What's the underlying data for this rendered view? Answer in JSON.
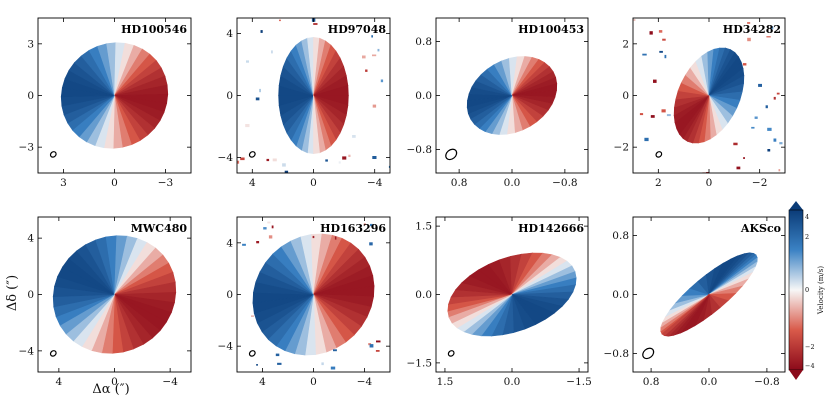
{
  "figure": {
    "xlabel": "Δα (″)",
    "ylabel": "Δδ (″)",
    "colorbar": {
      "label": "Velocity (m/s)",
      "ticks": [
        "4",
        "2",
        "0",
        "−2",
        "−4"
      ],
      "colors": {
        "red": "#8b0a1a",
        "white": "#f7f7f7",
        "blue": "#0b3c78"
      }
    }
  },
  "chart_data": [
    {
      "type": "heatmap",
      "name": "HD100546",
      "xlim": [
        4.5,
        -4.5
      ],
      "ylim": [
        -4.5,
        4.5
      ],
      "xticks": [
        3,
        0,
        -3
      ],
      "xticklabels": [
        "3",
        "0",
        "−3"
      ],
      "yticks": [
        3,
        0,
        -3
      ],
      "yticklabels": [
        "3",
        "0",
        "−3"
      ],
      "disk": {
        "radius": 3.2,
        "axis_ratio": 0.95,
        "pa_deg": 140,
        "redshift_angle_deg": 230
      },
      "beam_position": "bottom-left",
      "noise": false
    },
    {
      "type": "heatmap",
      "name": "HD97048",
      "xlim": [
        5,
        -5
      ],
      "ylim": [
        -5,
        5
      ],
      "xticks": [
        4,
        0,
        -4
      ],
      "xticklabels": [
        "4",
        "0",
        "−4"
      ],
      "yticks": [
        4,
        0,
        -4
      ],
      "yticklabels": [
        "4",
        "0",
        "−4"
      ],
      "disk": {
        "radius": 3.8,
        "axis_ratio": 0.6,
        "pa_deg": 90,
        "redshift_angle_deg": 270
      },
      "beam_position": "bottom-left",
      "noise": true
    },
    {
      "type": "heatmap",
      "name": "HD100453",
      "xlim": [
        1.15,
        -1.15
      ],
      "ylim": [
        -1.15,
        1.15
      ],
      "xticks": [
        0.8,
        0.0,
        -0.8
      ],
      "xticklabels": [
        "0.8",
        "0.0",
        "−0.8"
      ],
      "yticks": [
        0.8,
        0.0,
        -0.8
      ],
      "yticklabels": [
        "0.8",
        "0.0",
        "−0.8"
      ],
      "disk": {
        "radius": 0.72,
        "axis_ratio": 0.75,
        "pa_deg": 150,
        "redshift_angle_deg": 210
      },
      "beam_position": "bottom-left",
      "noise": false
    },
    {
      "type": "heatmap",
      "name": "HD34282",
      "xlim": [
        3,
        -3
      ],
      "ylim": [
        -3,
        3
      ],
      "xticks": [
        2,
        0,
        -2
      ],
      "xticklabels": [
        "2",
        "0",
        "−2"
      ],
      "yticks": [
        2,
        0,
        -2
      ],
      "yticklabels": [
        "2",
        "0",
        "−2"
      ],
      "disk": {
        "radius": 2.0,
        "axis_ratio": 0.6,
        "pa_deg": 115,
        "redshift_angle_deg": 30
      },
      "beam_position": "bottom-right",
      "noise": true
    },
    {
      "type": "heatmap",
      "name": "MWC480",
      "xlim": [
        5.5,
        -5.5
      ],
      "ylim": [
        -5.5,
        5.5
      ],
      "xticks": [
        4,
        0,
        -4
      ],
      "xticklabels": [
        "4",
        "0",
        "−4"
      ],
      "yticks": [
        4,
        0,
        -4
      ],
      "yticklabels": [
        "4",
        "0",
        "−4"
      ],
      "disk": {
        "radius": 4.5,
        "axis_ratio": 0.92,
        "pa_deg": 150,
        "redshift_angle_deg": 240
      },
      "beam_position": "bottom-left",
      "noise": false
    },
    {
      "type": "heatmap",
      "name": "HD163296",
      "xlim": [
        6,
        -6
      ],
      "ylim": [
        -6,
        6
      ],
      "xticks": [
        4,
        0,
        -4
      ],
      "xticklabels": [
        "4",
        "0",
        "−4"
      ],
      "yticks": [
        4,
        0,
        -4
      ],
      "yticklabels": [
        "4",
        "0",
        "−4"
      ],
      "disk": {
        "radius": 5.0,
        "axis_ratio": 0.9,
        "pa_deg": 135,
        "redshift_angle_deg": 220
      },
      "beam_position": "bottom-left",
      "noise": true
    },
    {
      "type": "heatmap",
      "name": "HD142666",
      "xlim": [
        1.7,
        -1.7
      ],
      "ylim": [
        -1.7,
        1.7
      ],
      "xticks": [
        1.5,
        0.0,
        -1.5
      ],
      "xticklabels": [
        "1.5",
        "0.0",
        "−1.5"
      ],
      "yticks": [
        1.5,
        0.0,
        -1.5
      ],
      "yticklabels": [
        "1.5",
        "0.0",
        "−1.5"
      ],
      "disk": {
        "radius": 1.5,
        "axis_ratio": 0.55,
        "pa_deg": 160,
        "redshift_angle_deg": 70
      },
      "beam_position": "bottom-left",
      "noise": false
    },
    {
      "type": "heatmap",
      "name": "AKSco",
      "xlim": [
        1.05,
        -1.05
      ],
      "ylim": [
        -1.05,
        1.05
      ],
      "xticks": [
        0.8,
        0.0,
        -0.8
      ],
      "xticklabels": [
        "0.8",
        "0.0",
        "−0.8"
      ],
      "yticks": [
        0.8,
        0.0,
        -0.8
      ],
      "yticklabels": [
        "0.8",
        "0.0",
        "−0.8"
      ],
      "disk": {
        "radius": 0.85,
        "axis_ratio": 0.28,
        "pa_deg": 140,
        "redshift_angle_deg": 310
      },
      "beam_position": "bottom-left",
      "noise": false
    }
  ]
}
